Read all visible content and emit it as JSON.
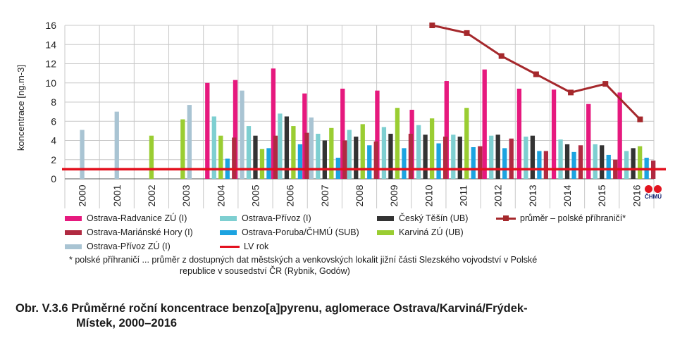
{
  "chart_data": {
    "type": "bar",
    "ylabel": "koncentrace [ng.m-3]",
    "ylim": [
      0,
      16
    ],
    "yticks": [
      0,
      2,
      4,
      6,
      8,
      10,
      12,
      14,
      16
    ],
    "categories": [
      "2000",
      "2001",
      "2002",
      "2003",
      "2004",
      "2005",
      "2006",
      "2007",
      "2008",
      "2009",
      "2010",
      "2011",
      "2012",
      "2013",
      "2014",
      "2015",
      "2016"
    ],
    "grid": true,
    "series": [
      {
        "name": "Ostrava-Přívoz ZÚ (I)",
        "color": "#a9c4d3",
        "values": [
          5.1,
          7.0,
          null,
          7.7,
          null,
          null,
          null,
          null,
          null,
          null,
          null,
          null,
          null,
          null,
          null,
          null,
          null
        ]
      },
      {
        "name": "Karviná ZÚ (UB)",
        "color": "#9acd32",
        "values": [
          null,
          null,
          4.5,
          6.2,
          4.5,
          3.1,
          5.5,
          5.3,
          5.7,
          7.4,
          6.3,
          7.4,
          null,
          null,
          null,
          null,
          3.4
        ]
      },
      {
        "name": "Ostrava-Radvanice ZÚ (I)",
        "color": "#e6197e",
        "values": [
          null,
          null,
          null,
          null,
          10.0,
          10.3,
          11.5,
          8.9,
          9.4,
          9.2,
          7.2,
          10.2,
          11.4,
          9.4,
          9.3,
          7.8,
          9.0
        ]
      },
      {
        "name": "Ostrava-Poruba/ČHMÚ (SUB)",
        "color": "#1ca3e0",
        "values": [
          null,
          null,
          null,
          null,
          2.1,
          3.2,
          3.6,
          2.2,
          3.5,
          3.2,
          3.7,
          3.3,
          3.2,
          2.9,
          2.8,
          2.5,
          2.2
        ]
      },
      {
        "name": "Ostrava-Mariánské Hory (I)",
        "color": "#b02a41",
        "values": [
          null,
          null,
          null,
          null,
          4.3,
          4.5,
          4.8,
          4.0,
          3.9,
          4.7,
          4.4,
          3.4,
          4.2,
          2.9,
          3.5,
          2.0,
          1.9
        ]
      },
      {
        "name": "Ostrava-Přívoz (I)",
        "color": "#7ecfd1",
        "values": [
          null,
          null,
          null,
          null,
          6.5,
          5.5,
          6.8,
          4.7,
          5.1,
          5.4,
          5.6,
          4.6,
          4.5,
          4.4,
          4.1,
          3.6,
          2.9
        ]
      },
      {
        "name": "Český Těšín (UB)",
        "color": "#333333",
        "values": [
          null,
          null,
          null,
          null,
          null,
          4.5,
          6.5,
          4.0,
          4.4,
          4.7,
          4.6,
          4.4,
          4.6,
          4.5,
          3.6,
          3.5,
          3.2
        ]
      },
      {
        "name": "Ostrava-Přívoz ZÚ (I)",
        "color": "#a9c4d3",
        "values": [
          null,
          null,
          null,
          null,
          null,
          9.2,
          null,
          6.4,
          null,
          null,
          null,
          null,
          null,
          null,
          null,
          null,
          null
        ]
      }
    ],
    "line": {
      "name": "průměr – polské příhraničí*",
      "color": "#a5282c",
      "x": [
        "2010",
        "2011",
        "2012",
        "2013",
        "2014",
        "2015",
        "2016"
      ],
      "values": [
        16.0,
        15.2,
        12.8,
        10.9,
        9.0,
        9.9,
        6.2
      ]
    },
    "limit": {
      "name": "LV rok",
      "value": 1,
      "color": "#e3101e"
    }
  },
  "legend": {
    "items": [
      {
        "label": "Ostrava-Radvanice ZÚ (I)",
        "color": "#e6197e",
        "kind": "box"
      },
      {
        "label": "Ostrava-Přívoz (I)",
        "color": "#7ecfd1",
        "kind": "box"
      },
      {
        "label": "Český Těšín (UB)",
        "color": "#333333",
        "kind": "box"
      },
      {
        "label": "průměr – polské příhraničí*",
        "color": "#a5282c",
        "kind": "line-marker"
      },
      {
        "label": "Ostrava-Mariánské Hory (I)",
        "color": "#b02a41",
        "kind": "box"
      },
      {
        "label": "Ostrava-Poruba/ČHMÚ (SUB)",
        "color": "#1ca3e0",
        "kind": "box"
      },
      {
        "label": "Karviná ZÚ (UB)",
        "color": "#9acd32",
        "kind": "box"
      },
      {
        "label": "Ostrava-Přívoz ZÚ (I)",
        "color": "#a9c4d3",
        "kind": "box"
      },
      {
        "label": "LV rok",
        "color": "#e3101e",
        "kind": "line"
      }
    ]
  },
  "note": {
    "line1": "* polské příhraničí ... průměr z dostupných dat městských a venkovských lokalit jižní části Slezského vojvodství v Polské",
    "line2": "republice v sousedství ČR (Rybnik, Godów)"
  },
  "caption": {
    "line1": "Obr. V.3.6  Průměrné roční koncentrace benzo[a]pyrenu, aglomerace Ostrava/Karviná/Frýdek-",
    "line2": "Místek, 2000–2016"
  },
  "logo": {
    "text": "ČHMÚ",
    "color": "#e2141f"
  }
}
